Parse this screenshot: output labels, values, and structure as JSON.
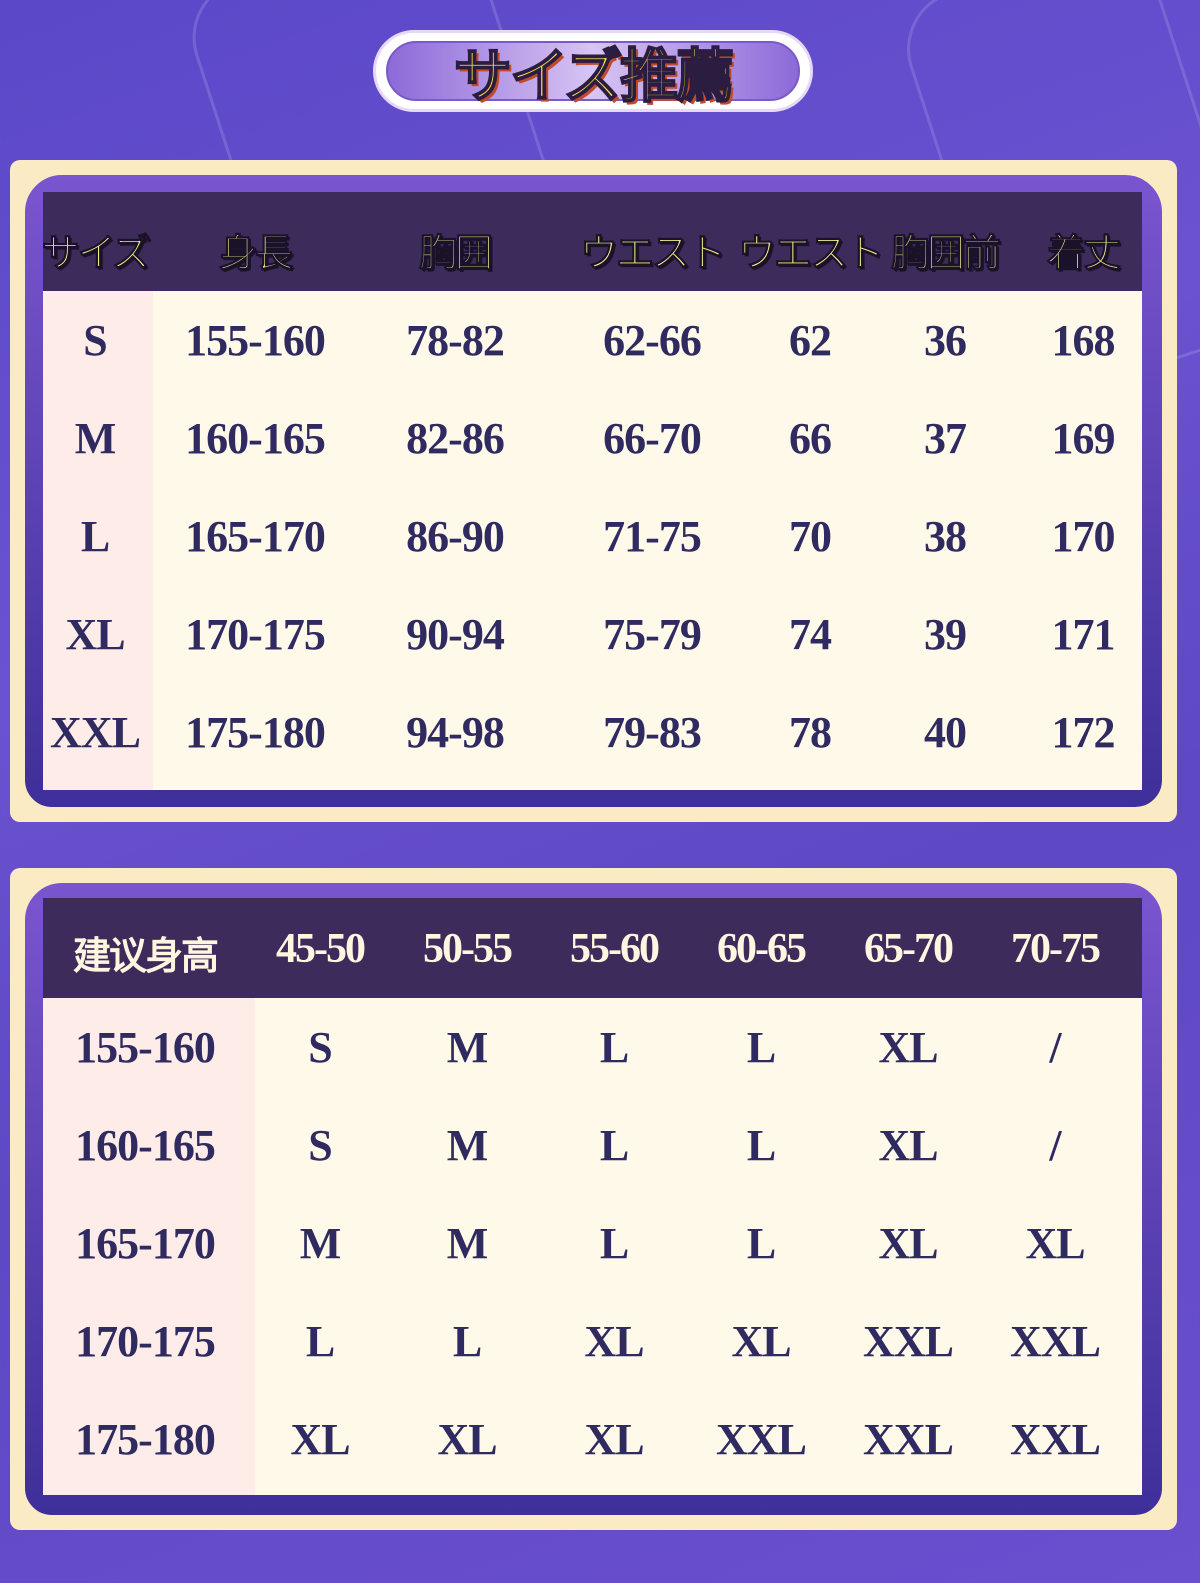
{
  "title": "サイズ推薦",
  "size_table": {
    "headers": [
      "サイズ",
      "身長",
      "胸囲",
      "ウエスト",
      "ウエスト",
      "胸囲前",
      "着丈"
    ],
    "rows": [
      [
        "S",
        "155-160",
        "78-82",
        "62-66",
        "62",
        "36",
        "168"
      ],
      [
        "M",
        "160-165",
        "82-86",
        "66-70",
        "66",
        "37",
        "169"
      ],
      [
        "L",
        "165-170",
        "86-90",
        "71-75",
        "70",
        "38",
        "170"
      ],
      [
        "XL",
        "170-175",
        "90-94",
        "75-79",
        "74",
        "39",
        "171"
      ],
      [
        "XXL",
        "175-180",
        "94-98",
        "79-83",
        "78",
        "40",
        "172"
      ]
    ]
  },
  "recommend_table": {
    "headers": [
      "建议身高",
      "45-50",
      "50-55",
      "55-60",
      "60-65",
      "65-70",
      "70-75"
    ],
    "rows": [
      [
        "155-160",
        "S",
        "M",
        "L",
        "L",
        "XL",
        "/"
      ],
      [
        "160-165",
        "S",
        "M",
        "L",
        "L",
        "XL",
        "/"
      ],
      [
        "165-170",
        "M",
        "M",
        "L",
        "L",
        "XL",
        "XL"
      ],
      [
        "170-175",
        "L",
        "L",
        "XL",
        "XL",
        "XXL",
        "XXL"
      ],
      [
        "175-180",
        "XL",
        "XL",
        "XL",
        "XXL",
        "XXL",
        "XXL"
      ]
    ]
  },
  "colors": {
    "header_bg": "#3d2b5c",
    "body_bg": "#fff9ea",
    "text": "#2f2a60",
    "frame": "#fbebc4",
    "background": "#5e48c4"
  }
}
